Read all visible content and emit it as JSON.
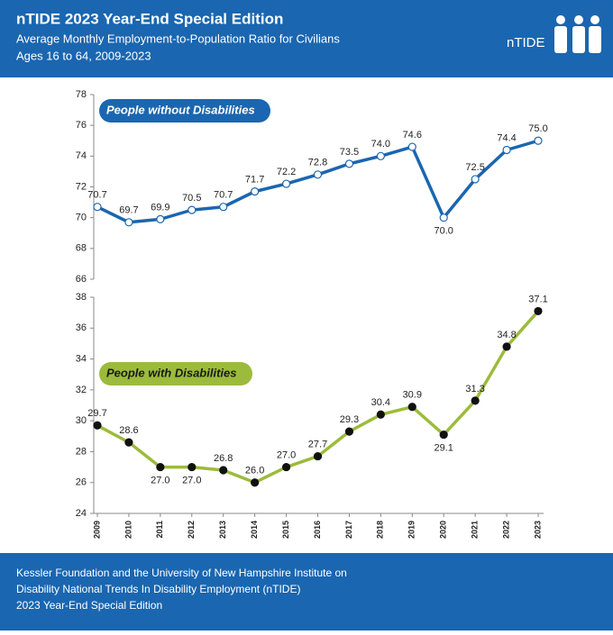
{
  "header": {
    "title": "nTIDE 2023 Year-End Special Edition",
    "subtitle_lines": [
      "Average Monthly Employment-to-Population Ratio for Civilians",
      "Ages 16 to 64, 2009-2023"
    ],
    "logo": "nTIDE"
  },
  "chart_data": [
    {
      "type": "line",
      "ylim": [
        66,
        78
      ],
      "yticks": [
        66,
        68,
        70,
        72,
        74,
        76,
        78
      ],
      "series": [
        {
          "name": "People without Disabilities",
          "color": "#1a66b0",
          "values": [
            70.7,
            69.7,
            69.9,
            70.5,
            70.7,
            71.7,
            72.2,
            72.8,
            73.5,
            74.0,
            74.6,
            70.0,
            72.5,
            74.4,
            75.0
          ],
          "value_labels": [
            "70.7",
            "69.7",
            "69.9",
            "70.5",
            "70.7",
            "71.7",
            "72.2",
            "72.8",
            "73.5",
            "74.0",
            "74.6",
            "70.0",
            "72.5",
            "74.4",
            "75.0"
          ]
        }
      ]
    },
    {
      "type": "line",
      "ylim": [
        24,
        38
      ],
      "yticks": [
        24,
        26,
        28,
        30,
        32,
        34,
        36,
        38
      ],
      "categories": [
        "2009",
        "2010",
        "2011",
        "2012",
        "2013",
        "2014",
        "2015",
        "2016",
        "2017",
        "2018",
        "2019",
        "2020",
        "2021",
        "2022",
        "2023"
      ],
      "series": [
        {
          "name": "People with Disabilities",
          "color": "#9cbb3c",
          "values": [
            29.7,
            28.6,
            27.0,
            27.0,
            26.8,
            26.0,
            27.0,
            27.7,
            29.3,
            30.4,
            30.9,
            29.1,
            31.3,
            34.8,
            37.1
          ],
          "value_labels": [
            "29.7",
            "28.6",
            "27.0",
            "27.0",
            "26.8",
            "26.0",
            "27.0",
            "27.7",
            "29.3",
            "30.4",
            "30.9",
            "29.1",
            "31.3",
            "34.8",
            "37.1"
          ]
        }
      ]
    }
  ],
  "footer": {
    "lines": [
      "Kessler Foundation and the University of New Hampshire Institute on",
      "Disability National Trends In Disability Employment (nTIDE)",
      "2023 Year-End Special Edition"
    ]
  }
}
